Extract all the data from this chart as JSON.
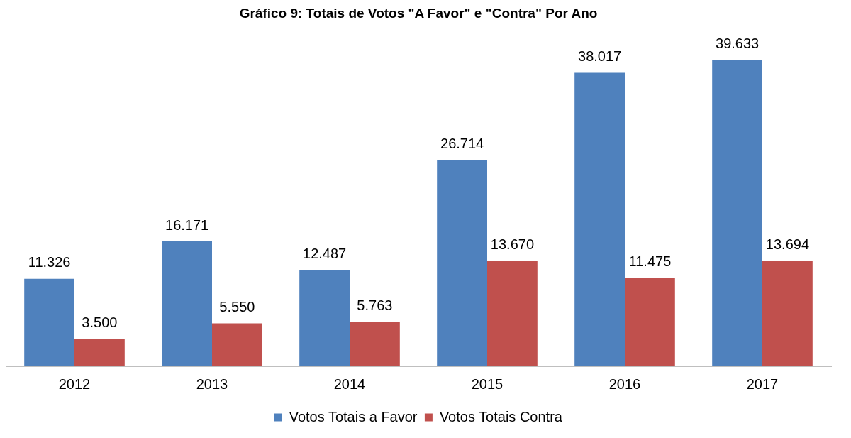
{
  "chart_data": {
    "type": "bar",
    "title": "Gráfico 9: Totais de Votos \"A Favor\" e \"Contra\" Por Ano",
    "categories": [
      "2012",
      "2013",
      "2014",
      "2015",
      "2016",
      "2017"
    ],
    "series": [
      {
        "name": "Votos Totais a Favor",
        "color": "#4f81bd",
        "values": [
          11326,
          16171,
          12487,
          26714,
          38017,
          39633
        ],
        "value_labels": [
          "11.326",
          "16.171",
          "12.487",
          "26.714",
          "38.017",
          "39.633"
        ]
      },
      {
        "name": "Votos Totais Contra",
        "color": "#c0504d",
        "values": [
          3500,
          5550,
          5763,
          13670,
          11475,
          13694
        ],
        "value_labels": [
          "3.500",
          "5.550",
          "5.763",
          "13.670",
          "11.475",
          "13.694"
        ]
      }
    ],
    "legend": "bottom",
    "grid": false
  }
}
